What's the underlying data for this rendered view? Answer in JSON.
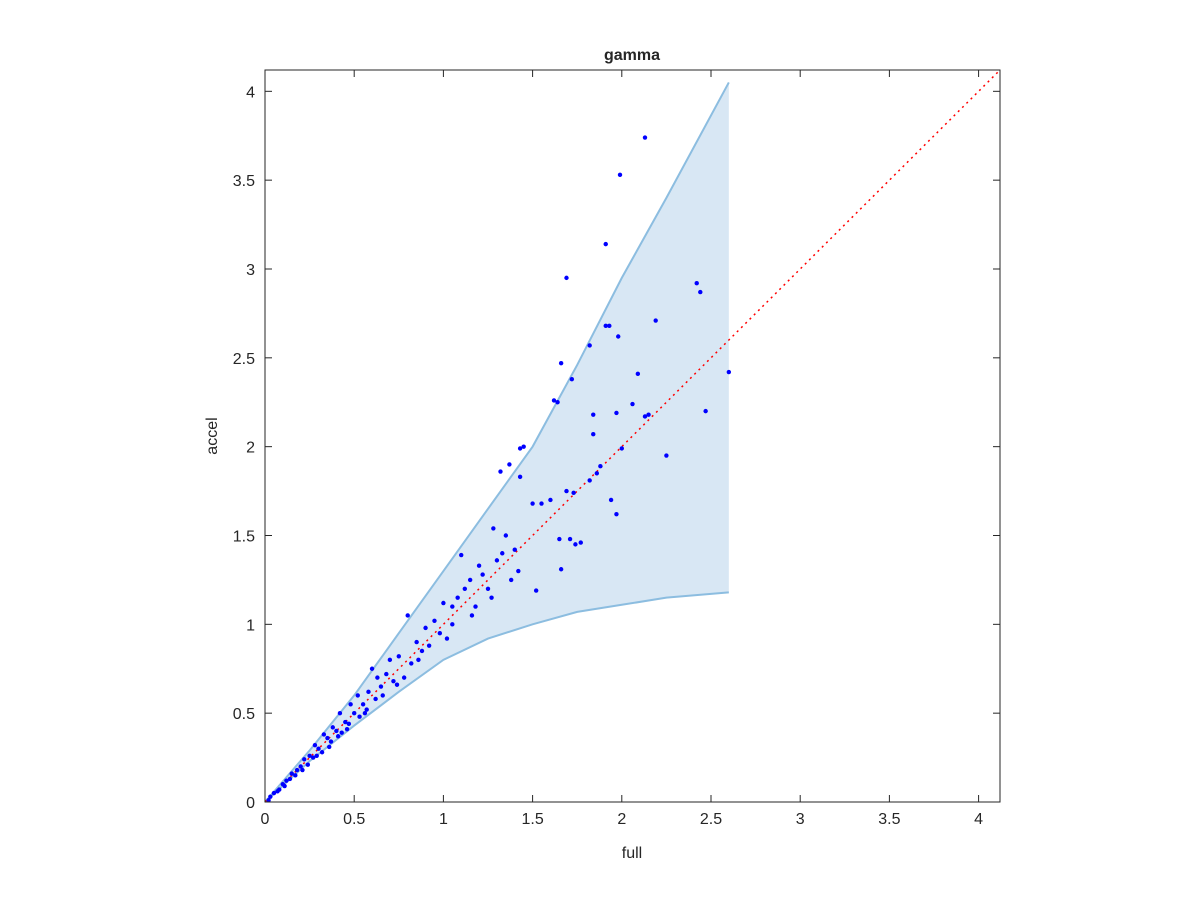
{
  "chart_data": {
    "type": "scatter",
    "title": "gamma",
    "x_label": "full",
    "y_label": "accel",
    "xlim": [
      0,
      4.12
    ],
    "ylim": [
      0,
      4.12
    ],
    "xticks": [
      0,
      0.5,
      1,
      1.5,
      2,
      2.5,
      3,
      3.5,
      4
    ],
    "yticks": [
      0,
      0.5,
      1,
      1.5,
      2,
      2.5,
      3,
      3.5,
      4
    ],
    "color": "#0000ff",
    "x": [
      2.13,
      1.99,
      1.91,
      1.69,
      2.42,
      2.44,
      1.91,
      1.93,
      2.19,
      1.98,
      1.82,
      1.66,
      2.09,
      2.6,
      1.72,
      1.62,
      1.64,
      2.47,
      1.84,
      1.97,
      2.06,
      2.13,
      2.15,
      1.84,
      2.0,
      1.45,
      1.43,
      2.25,
      1.88,
      1.86,
      1.82,
      1.32,
      1.37,
      1.43,
      1.5,
      1.55,
      1.6,
      1.69,
      1.73,
      1.94,
      1.97,
      1.71,
      1.65,
      1.77,
      1.74,
      1.66,
      1.52,
      1.4,
      1.35,
      1.28,
      1.2,
      1.1,
      1.15,
      1.25,
      1.08,
      1.0,
      1.05,
      0.95,
      0.9,
      0.85,
      0.8,
      0.75,
      0.7,
      0.68,
      0.65,
      0.6,
      0.58,
      0.55,
      0.52,
      0.5,
      0.48,
      0.45,
      0.42,
      0.4,
      0.38,
      0.35,
      0.33,
      0.3,
      0.28,
      0.25,
      0.22,
      0.2,
      0.18,
      0.15,
      0.12,
      0.1,
      0.08,
      0.05,
      0.03,
      0.02,
      1.12,
      1.18,
      1.22,
      1.3,
      1.38,
      1.05,
      0.98,
      0.92,
      0.88,
      0.82,
      0.78,
      0.72,
      0.66,
      0.62,
      0.56,
      0.53,
      0.46,
      0.43,
      0.37,
      0.32,
      0.27,
      0.24,
      0.17,
      0.14,
      0.11,
      0.07,
      1.42,
      1.33,
      1.27,
      1.16,
      1.02,
      0.86,
      0.74,
      0.63,
      0.57,
      0.47,
      0.41,
      0.36,
      0.29,
      0.21
    ],
    "y": [
      3.74,
      3.53,
      3.14,
      2.95,
      2.92,
      2.87,
      2.68,
      2.68,
      2.71,
      2.62,
      2.57,
      2.47,
      2.41,
      2.42,
      2.38,
      2.26,
      2.25,
      2.2,
      2.18,
      2.19,
      2.24,
      2.17,
      2.18,
      2.07,
      1.99,
      2.0,
      1.99,
      1.95,
      1.89,
      1.85,
      1.81,
      1.86,
      1.9,
      1.83,
      1.68,
      1.68,
      1.7,
      1.75,
      1.74,
      1.7,
      1.62,
      1.48,
      1.48,
      1.46,
      1.45,
      1.31,
      1.19,
      1.42,
      1.5,
      1.54,
      1.33,
      1.39,
      1.25,
      1.2,
      1.15,
      1.12,
      1.0,
      1.02,
      0.98,
      0.9,
      1.05,
      0.82,
      0.8,
      0.72,
      0.65,
      0.75,
      0.62,
      0.55,
      0.6,
      0.5,
      0.55,
      0.45,
      0.5,
      0.4,
      0.42,
      0.36,
      0.38,
      0.3,
      0.32,
      0.26,
      0.24,
      0.2,
      0.18,
      0.16,
      0.12,
      0.1,
      0.07,
      0.05,
      0.03,
      0.01,
      1.2,
      1.1,
      1.28,
      1.36,
      1.25,
      1.1,
      0.95,
      0.88,
      0.85,
      0.78,
      0.7,
      0.68,
      0.6,
      0.58,
      0.5,
      0.48,
      0.41,
      0.39,
      0.34,
      0.28,
      0.25,
      0.21,
      0.15,
      0.13,
      0.09,
      0.06,
      1.3,
      1.4,
      1.15,
      1.05,
      0.92,
      0.8,
      0.66,
      0.7,
      0.52,
      0.44,
      0.37,
      0.31,
      0.26,
      0.18
    ],
    "band": {
      "color": "#d8e7f4",
      "edge_color": "#8cbde0",
      "x": [
        0,
        0.25,
        0.5,
        0.75,
        1,
        1.25,
        1.5,
        1.75,
        2,
        2.25,
        2.6
      ],
      "upper": [
        0,
        0.29,
        0.6,
        0.95,
        1.3,
        1.65,
        2.0,
        2.46,
        2.95,
        3.4,
        4.05
      ],
      "lower": [
        0,
        0.23,
        0.43,
        0.62,
        0.8,
        0.92,
        1.0,
        1.07,
        1.11,
        1.15,
        1.18
      ]
    },
    "reference_line": {
      "color": "#ff0000",
      "x": [
        0,
        4.12
      ],
      "y": [
        0,
        4.12
      ]
    }
  }
}
